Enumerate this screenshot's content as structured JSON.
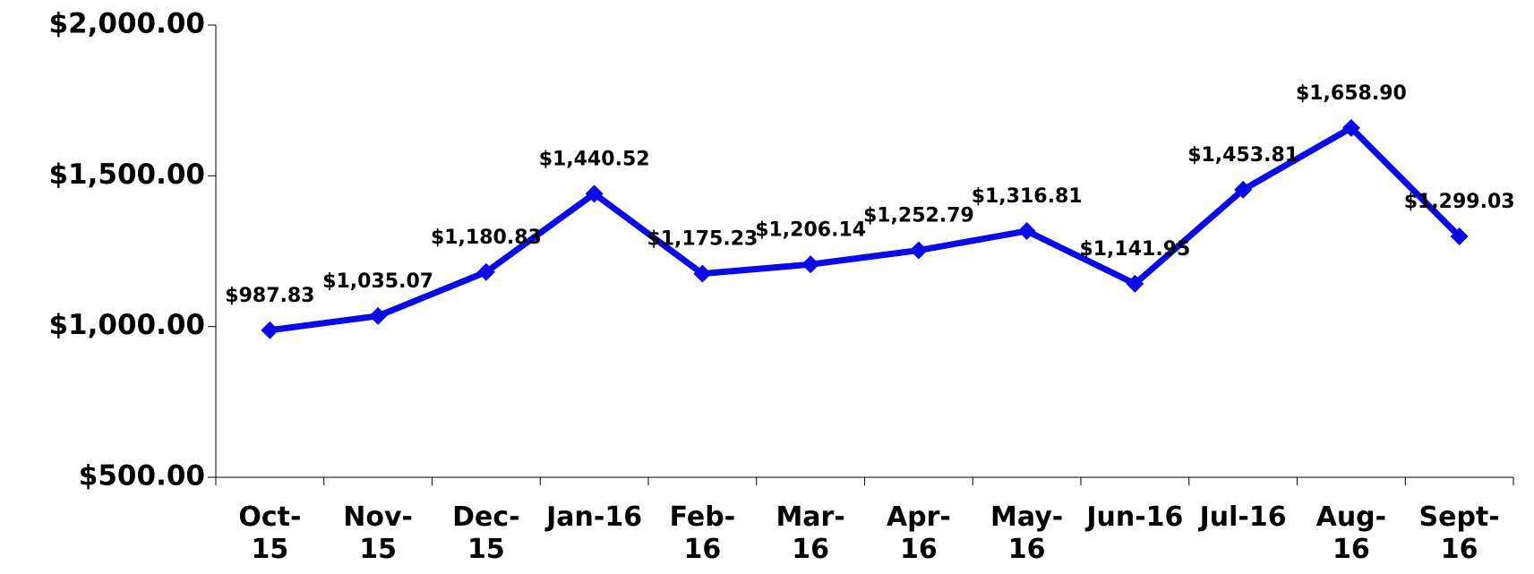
{
  "chart_data": {
    "type": "line",
    "categories": [
      "Oct-15",
      "Nov-15",
      "Dec-15",
      "Jan-16",
      "Feb-16",
      "Mar-16",
      "Apr-16",
      "May-16",
      "Jun-16",
      "Jul-16",
      "Aug-16",
      "Sept-16"
    ],
    "series": [
      {
        "color": "#0a0ae6",
        "values": [
          987.83,
          1035.07,
          1180.83,
          1440.52,
          1175.23,
          1206.14,
          1252.79,
          1316.81,
          1141.95,
          1453.81,
          1658.9,
          1299.03
        ],
        "value_labels": [
          "$987.83",
          "$1,035.07",
          "$1,180.83",
          "$1,440.52",
          "$1,175.23",
          "$1,206.14",
          "$1,252.79",
          "$1,316.81",
          "$1,141.95",
          "$1,453.81",
          "$1,658.90",
          "$1,299.03"
        ]
      }
    ],
    "ylim": [
      500,
      2000
    ],
    "yticks": [
      {
        "value": 500,
        "label": "$500.00"
      },
      {
        "value": 1000,
        "label": "$1,000.00"
      },
      {
        "value": 1500,
        "label": "$1,500.00"
      },
      {
        "value": 2000,
        "label": "$2,000.00"
      }
    ]
  }
}
